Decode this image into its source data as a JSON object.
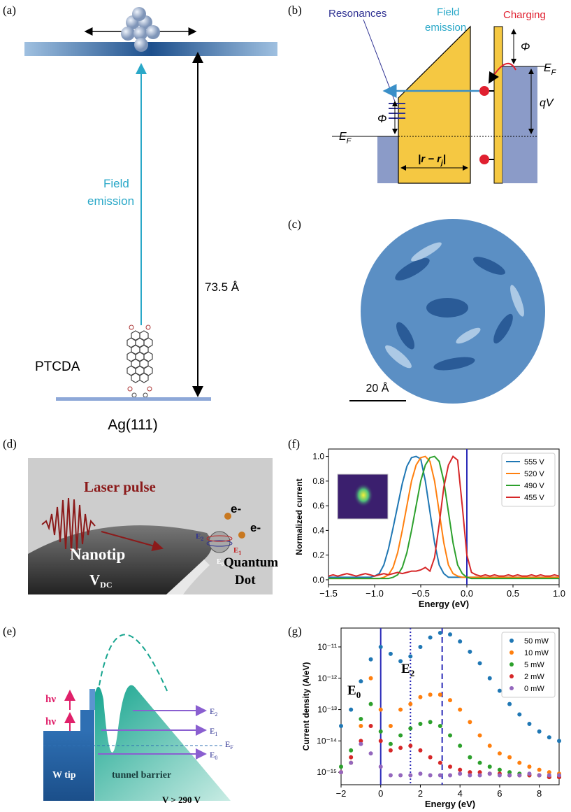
{
  "panels": {
    "a": {
      "label": "(a)",
      "field_emission": [
        "Field",
        "emission"
      ],
      "distance": "73.5 Å",
      "molecule": "PTCDA",
      "substrate": "Ag(111)"
    },
    "b": {
      "label": "(b)",
      "resonances": "Resonances",
      "field_emission": [
        "Field",
        "emission"
      ],
      "charging": "Charging",
      "phi": "Φ",
      "fermi": {
        "base": "E",
        "sub": "F"
      },
      "bias": "qV",
      "distance": {
        "pre": "|r − r",
        "sub": "j",
        "post": "|"
      }
    },
    "c": {
      "label": "(c)",
      "scale": "20 Å"
    },
    "d": {
      "label": "(d)",
      "laser": "Laser pulse",
      "electron": "e-",
      "levels": [
        {
          "base": "E",
          "sub": "2"
        },
        {
          "base": "E",
          "sub": "1"
        },
        {
          "base": "E",
          "sub": "0"
        }
      ],
      "tip": "Nanotip",
      "voltage": {
        "base": "V",
        "sub": "DC"
      },
      "dot": [
        "Quantum",
        "Dot"
      ]
    },
    "e": {
      "label": "(e)",
      "photon": "hν",
      "levels": [
        {
          "base": "E",
          "sub": "2"
        },
        {
          "base": "E",
          "sub": "1"
        },
        {
          "base": "E",
          "sub": "F"
        },
        {
          "base": "E",
          "sub": "0"
        }
      ],
      "tip": "W tip",
      "barrier": "tunnel barrier",
      "voltage": "V > 290 V"
    },
    "f": {
      "label": "(f)"
    },
    "g": {
      "label": "(g)"
    }
  },
  "chart_data": [
    {
      "type": "line",
      "xlabel": "Energy (eV)",
      "ylabel": "Normalized current",
      "legend": "upper right",
      "xlim": [
        -1.5,
        1.0
      ],
      "ylim": [
        -0.04,
        1.06
      ],
      "xticks": [
        {
          "value": -1.5,
          "label": "−1.5"
        },
        {
          "value": -1,
          "label": "−1.0"
        },
        {
          "value": -0.5,
          "label": "−0.5"
        },
        {
          "value": 0,
          "label": "0.0"
        },
        0.5,
        {
          "value": 1,
          "label": "1.0"
        }
      ],
      "yticks": [
        {
          "value": 0,
          "label": "0.0"
        },
        0.2,
        0.4,
        0.6,
        0.8,
        {
          "value": 1,
          "label": "1.0"
        }
      ],
      "vlines": [
        {
          "x": 0,
          "style": "solid",
          "color": "#2b2bb8"
        }
      ],
      "x": [
        -1.5,
        -1.45,
        -1.4,
        -1.35,
        -1.3,
        -1.25,
        -1.2,
        -1.15,
        -1.1,
        -1.05,
        -1.0,
        -0.95,
        -0.9,
        -0.85,
        -0.8,
        -0.75,
        -0.7,
        -0.65,
        -0.6,
        -0.55,
        -0.5,
        -0.45,
        -0.4,
        -0.35,
        -0.3,
        -0.25,
        -0.2,
        -0.15,
        -0.1,
        -0.05,
        0,
        0.05,
        0.1,
        0.15,
        0.2,
        0.25,
        0.3,
        0.35,
        0.4,
        0.45,
        0.5,
        0.55,
        0.6,
        0.65,
        0.7,
        0.75,
        0.8,
        0.85,
        0.9,
        0.95,
        1.0
      ],
      "series": [
        {
          "name": "555 V",
          "color": "#1f77b4",
          "values": [
            0.02,
            0.02,
            0.02,
            0.02,
            0.02,
            0.02,
            0.02,
            0.02,
            0.02,
            0.02,
            0.03,
            0.05,
            0.12,
            0.25,
            0.42,
            0.6,
            0.78,
            0.92,
            0.99,
            1.0,
            0.98,
            0.8,
            0.55,
            0.3,
            0.12,
            0.05,
            0.02,
            0.02,
            0.02,
            0.02,
            0.02,
            0.02,
            0.02,
            0.02,
            0.02,
            0.02,
            0.02,
            0.02,
            0.02,
            0.02,
            0.02,
            0.02,
            0.02,
            0.02,
            0.02,
            0.02,
            0.02,
            0.02,
            0.02,
            0.02,
            0.02
          ]
        },
        {
          "name": "520 V",
          "color": "#ff7f0e",
          "values": [
            0.01,
            0.01,
            0.01,
            0.01,
            0.01,
            0.01,
            0.01,
            0.01,
            0.01,
            0.01,
            0.01,
            0.01,
            0.02,
            0.04,
            0.1,
            0.22,
            0.4,
            0.6,
            0.8,
            0.93,
            0.99,
            1.0,
            0.96,
            0.8,
            0.55,
            0.3,
            0.12,
            0.05,
            0.03,
            0.02,
            0.02,
            0.02,
            0.02,
            0.02,
            0.02,
            0.02,
            0.02,
            0.02,
            0.02,
            0.02,
            0.02,
            0.02,
            0.02,
            0.02,
            0.02,
            0.02,
            0.02,
            0.02,
            0.02,
            0.02,
            0.02
          ]
        },
        {
          "name": "490 V",
          "color": "#2ca02c",
          "values": [
            0.01,
            0.01,
            0.01,
            0.01,
            0.01,
            0.01,
            0.01,
            0.01,
            0.01,
            0.01,
            0.01,
            0.01,
            0.01,
            0.01,
            0.02,
            0.04,
            0.1,
            0.22,
            0.4,
            0.6,
            0.8,
            0.93,
            0.99,
            1.0,
            0.96,
            0.8,
            0.55,
            0.3,
            0.12,
            0.05,
            0.02,
            0.01,
            0.01,
            0.01,
            0.01,
            0.01,
            0.01,
            0.01,
            0.01,
            0.01,
            0.01,
            0.01,
            0.01,
            0.01,
            0.01,
            0.01,
            0.01,
            0.01,
            0.01,
            0.01,
            0.01
          ]
        },
        {
          "name": "455 V",
          "color": "#d62728",
          "values": [
            0.03,
            0.04,
            0.03,
            0.04,
            0.05,
            0.04,
            0.03,
            0.04,
            0.05,
            0.04,
            0.03,
            0.04,
            0.05,
            0.04,
            0.05,
            0.06,
            0.05,
            0.06,
            0.07,
            0.07,
            0.08,
            0.1,
            0.07,
            0.18,
            0.45,
            0.75,
            0.93,
            1.0,
            0.97,
            0.6,
            0.2,
            0.06,
            0.04,
            0.03,
            0.04,
            0.03,
            0.04,
            0.03,
            0.03,
            0.04,
            0.03,
            0.04,
            0.03,
            0.03,
            0.04,
            0.03,
            0.04,
            0.03,
            0.03,
            0.04,
            0.03
          ]
        }
      ]
    },
    {
      "type": "scatter",
      "xlabel": "Energy (eV)",
      "ylabel": "Current density (A/eV)",
      "legend": "upper right",
      "log_y": true,
      "xlim": [
        -2,
        9
      ],
      "ylim": [
        4e-16,
        4e-11
      ],
      "xticks": [
        {
          "value": -2,
          "label": "−2"
        },
        0,
        2,
        4,
        6,
        8
      ],
      "yticks": [
        {
          "value": 1e-15,
          "label": "10⁻¹⁵"
        },
        {
          "value": 1e-14,
          "label": "10⁻¹⁴"
        },
        {
          "value": 1e-13,
          "label": "10⁻¹³"
        },
        {
          "value": 1e-12,
          "label": "10⁻¹²"
        },
        {
          "value": 1e-11,
          "label": "10⁻¹¹"
        }
      ],
      "vlines": [
        {
          "x": 0,
          "style": "solid",
          "color": "#2b2bb8"
        },
        {
          "x": 1.5,
          "style": "dotted",
          "color": "#2b2bb8"
        },
        {
          "x": 3.1,
          "style": "dashed",
          "color": "#2b2bb8"
        }
      ],
      "annotations": [
        {
          "base": "E",
          "sub": "0"
        },
        {
          "base": "E",
          "sub": "2"
        }
      ],
      "x": [
        -2,
        -1.5,
        -1,
        -0.5,
        0,
        0.5,
        1,
        1.5,
        2,
        2.5,
        3,
        3.5,
        4,
        4.5,
        5,
        5.5,
        6,
        6.5,
        7,
        7.5,
        8,
        8.5,
        9
      ],
      "series": [
        {
          "name": "50 mW",
          "color": "#1f77b4",
          "values": [
            3e-14,
            1e-13,
            8e-13,
            4e-12,
            1e-11,
            6e-12,
            3.5e-12,
            5e-12,
            1e-11,
            2e-11,
            2.8e-11,
            2.5e-11,
            1.5e-11,
            7e-12,
            3e-12,
            1e-12,
            4e-13,
            1.5e-13,
            7e-14,
            3.5e-14,
            2e-14,
            1.3e-14,
            1e-14
          ]
        },
        {
          "name": "10 mW",
          "color": "#ff7f0e",
          "values": [
            1e-15,
            2e-15,
            3e-14,
            1e-12,
            1e-13,
            3e-14,
            1e-13,
            1.5e-13,
            2.5e-13,
            3e-13,
            3e-13,
            2e-13,
            1e-13,
            4e-14,
            1.5e-14,
            7e-15,
            4e-15,
            3e-15,
            2e-15,
            1.5e-15,
            1.2e-15,
            1e-15,
            9e-16
          ]
        },
        {
          "name": "5 mW",
          "color": "#2ca02c",
          "values": [
            1.5e-15,
            5e-15,
            5e-14,
            1.5e-13,
            2e-14,
            8e-15,
            1.5e-14,
            2.5e-14,
            3.5e-14,
            4e-14,
            3e-14,
            1.5e-14,
            7e-15,
            3e-15,
            2e-15,
            1.5e-15,
            1.2e-15,
            1e-15,
            9e-16,
            8e-16,
            8e-16,
            7e-16,
            7e-16
          ]
        },
        {
          "name": "2 mW",
          "color": "#d62728",
          "values": [
            1e-15,
            3e-15,
            1e-14,
            3e-14,
            1e-14,
            5e-15,
            6e-15,
            7e-15,
            5e-15,
            3e-15,
            2e-15,
            1.5e-15,
            1.2e-15,
            1e-15,
            1e-15,
            9e-16,
            9e-16,
            8e-16,
            8e-16,
            8e-16,
            8e-16,
            7e-16,
            7e-16
          ]
        },
        {
          "name": "0 mW",
          "color": "#9467bd",
          "values": [
            1e-15,
            2e-15,
            8e-15,
            4e-15,
            1.5e-15,
            8e-16,
            8e-16,
            8e-16,
            9e-16,
            8e-16,
            8e-16,
            8e-16,
            9e-16,
            8e-16,
            8e-16,
            9e-16,
            8e-16,
            8e-16,
            8e-16,
            9e-16,
            8e-16,
            8e-16,
            8e-16
          ]
        }
      ]
    }
  ]
}
